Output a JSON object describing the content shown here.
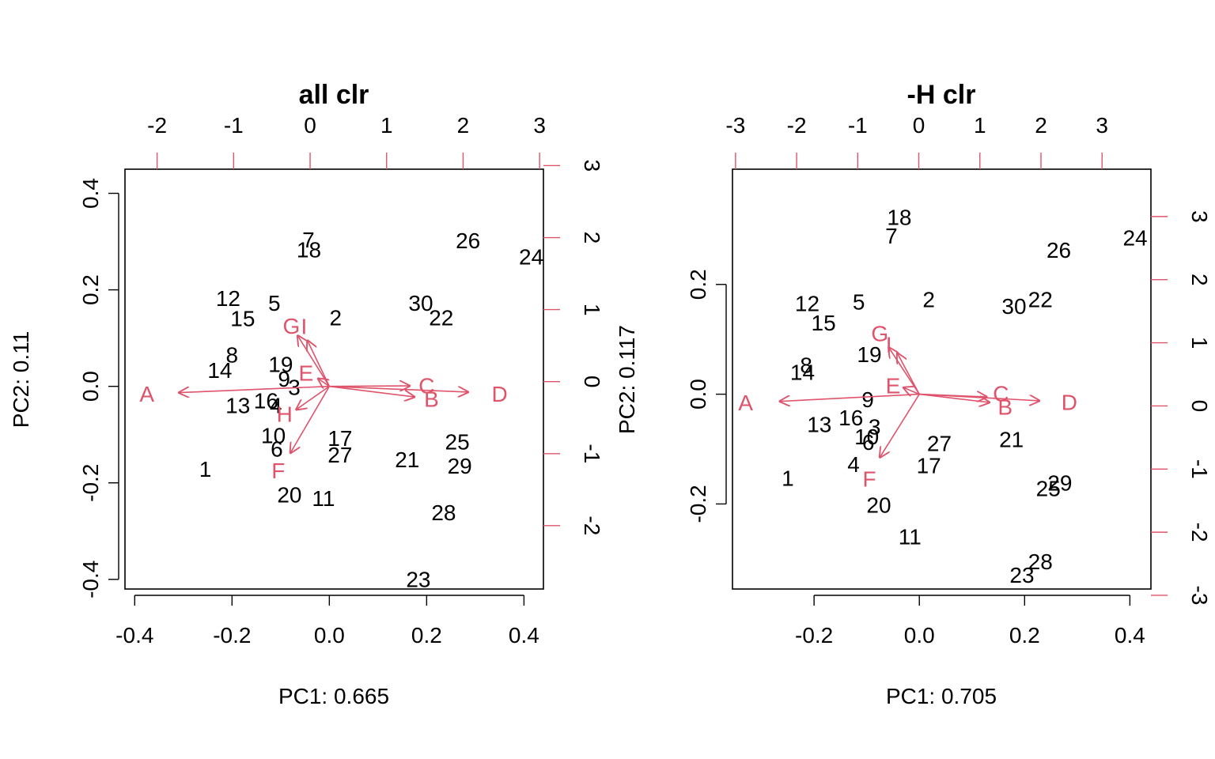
{
  "colors": {
    "text": "#000000",
    "variables": "#DF536B"
  },
  "chart_data": [
    {
      "type": "scatter",
      "subtype": "biplot",
      "title": "all clr",
      "xlabel": "PC1: 0.665",
      "ylabel": "PC2: 0.11",
      "xlim": [
        -0.42,
        0.44
      ],
      "ylim": [
        -0.42,
        0.45
      ],
      "x_ticks": [
        "-0.4",
        "-0.2",
        "0.0",
        "0.2",
        "0.4"
      ],
      "y_ticks": [
        "-0.4",
        "-0.2",
        "0.0",
        "0.2",
        "0.4"
      ],
      "top_lim": [
        -2.42,
        3.05
      ],
      "top_ticks": [
        "-2",
        "-1",
        "0",
        "1",
        "2",
        "3"
      ],
      "right_lim": [
        -2.88,
        2.95
      ],
      "right_ticks": [
        "-2",
        "-1",
        "0",
        "1",
        "2",
        "3"
      ],
      "points": [
        {
          "label": "1",
          "x": -0.255,
          "y": -0.172
        },
        {
          "label": "2",
          "x": 0.013,
          "y": 0.142
        },
        {
          "label": "3",
          "x": -0.072,
          "y": -0.002
        },
        {
          "label": "4",
          "x": -0.11,
          "y": -0.04
        },
        {
          "label": "5",
          "x": -0.113,
          "y": 0.172
        },
        {
          "label": "6",
          "x": -0.108,
          "y": -0.13
        },
        {
          "label": "7",
          "x": -0.043,
          "y": 0.303
        },
        {
          "label": "8",
          "x": -0.2,
          "y": 0.065
        },
        {
          "label": "9",
          "x": -0.093,
          "y": 0.015
        },
        {
          "label": "10",
          "x": -0.115,
          "y": -0.102
        },
        {
          "label": "11",
          "x": -0.012,
          "y": -0.232
        },
        {
          "label": "12",
          "x": -0.208,
          "y": 0.182
        },
        {
          "label": "13",
          "x": -0.188,
          "y": -0.04
        },
        {
          "label": "14",
          "x": -0.225,
          "y": 0.033
        },
        {
          "label": "15",
          "x": -0.178,
          "y": 0.14
        },
        {
          "label": "16",
          "x": -0.13,
          "y": -0.03
        },
        {
          "label": "17",
          "x": 0.022,
          "y": -0.108
        },
        {
          "label": "18",
          "x": -0.042,
          "y": 0.283
        },
        {
          "label": "19",
          "x": -0.1,
          "y": 0.045
        },
        {
          "label": "20",
          "x": -0.082,
          "y": -0.225
        },
        {
          "label": "21",
          "x": 0.16,
          "y": -0.152
        },
        {
          "label": "22",
          "x": 0.23,
          "y": 0.142
        },
        {
          "label": "23",
          "x": 0.183,
          "y": -0.4
        },
        {
          "label": "24",
          "x": 0.415,
          "y": 0.268
        },
        {
          "label": "25",
          "x": 0.263,
          "y": -0.115
        },
        {
          "label": "26",
          "x": 0.285,
          "y": 0.302
        },
        {
          "label": "27",
          "x": 0.022,
          "y": -0.142
        },
        {
          "label": "28",
          "x": 0.235,
          "y": -0.262
        },
        {
          "label": "29",
          "x": 0.268,
          "y": -0.165
        },
        {
          "label": "30",
          "x": 0.188,
          "y": 0.172
        }
      ],
      "arrows": [
        {
          "label": "A",
          "x": -0.309,
          "y": -0.013,
          "lx": -0.375,
          "ly": -0.016
        },
        {
          "label": "B",
          "x": 0.175,
          "y": -0.022,
          "lx": 0.21,
          "ly": -0.027
        },
        {
          "label": "C",
          "x": 0.165,
          "y": 0.001,
          "lx": 0.2,
          "ly": 0.001
        },
        {
          "label": "D",
          "x": 0.285,
          "y": -0.012,
          "lx": 0.35,
          "ly": -0.016
        },
        {
          "label": "E",
          "x": -0.023,
          "y": 0.016,
          "lx": -0.048,
          "ly": 0.027
        },
        {
          "label": "F",
          "x": -0.08,
          "y": -0.138,
          "lx": -0.105,
          "ly": -0.175
        },
        {
          "label": "G",
          "x": -0.065,
          "y": 0.105,
          "lx": -0.078,
          "ly": 0.125
        },
        {
          "label": "H",
          "x": -0.068,
          "y": -0.048,
          "lx": -0.092,
          "ly": -0.058
        },
        {
          "label": "I",
          "x": -0.045,
          "y": 0.095,
          "lx": -0.052,
          "ly": 0.124
        }
      ]
    },
    {
      "type": "scatter",
      "subtype": "biplot",
      "title": "-H clr",
      "xlabel": "PC1: 0.705",
      "ylabel": "PC2: 0.117",
      "xlim": [
        -0.355,
        0.44
      ],
      "ylim": [
        -0.355,
        0.41
      ],
      "x_ticks": [
        "-0.2",
        "0.0",
        "0.2",
        "0.4"
      ],
      "y_ticks": [
        "-0.2",
        "0.0",
        "0.2"
      ],
      "top_lim": [
        -3.05,
        3.8
      ],
      "top_ticks": [
        "-3",
        "-2",
        "-1",
        "0",
        "1",
        "2",
        "3"
      ],
      "right_lim": [
        -2.9,
        3.75
      ],
      "right_ticks": [
        "-3",
        "-2",
        "-1",
        "0",
        "1",
        "2",
        "3"
      ],
      "points": [
        {
          "label": "1",
          "x": -0.25,
          "y": -0.153
        },
        {
          "label": "2",
          "x": 0.018,
          "y": 0.172
        },
        {
          "label": "3",
          "x": -0.085,
          "y": -0.06
        },
        {
          "label": "4",
          "x": -0.125,
          "y": -0.128
        },
        {
          "label": "5",
          "x": -0.115,
          "y": 0.168
        },
        {
          "label": "6",
          "x": -0.097,
          "y": -0.088
        },
        {
          "label": "7",
          "x": -0.053,
          "y": 0.288
        },
        {
          "label": "8",
          "x": -0.215,
          "y": 0.053
        },
        {
          "label": "9",
          "x": -0.098,
          "y": -0.01
        },
        {
          "label": "10",
          "x": -0.1,
          "y": -0.078
        },
        {
          "label": "11",
          "x": -0.018,
          "y": -0.26
        },
        {
          "label": "12",
          "x": -0.213,
          "y": 0.165
        },
        {
          "label": "13",
          "x": -0.19,
          "y": -0.055
        },
        {
          "label": "14",
          "x": -0.222,
          "y": 0.04
        },
        {
          "label": "15",
          "x": -0.182,
          "y": 0.13
        },
        {
          "label": "16",
          "x": -0.13,
          "y": -0.043
        },
        {
          "label": "17",
          "x": 0.018,
          "y": -0.13
        },
        {
          "label": "18",
          "x": -0.038,
          "y": 0.322
        },
        {
          "label": "19",
          "x": -0.095,
          "y": 0.072
        },
        {
          "label": "20",
          "x": -0.077,
          "y": -0.202
        },
        {
          "label": "21",
          "x": 0.175,
          "y": -0.083
        },
        {
          "label": "22",
          "x": 0.23,
          "y": 0.172
        },
        {
          "label": "23",
          "x": 0.195,
          "y": -0.33
        },
        {
          "label": "24",
          "x": 0.41,
          "y": 0.285
        },
        {
          "label": "25",
          "x": 0.245,
          "y": -0.172
        },
        {
          "label": "26",
          "x": 0.265,
          "y": 0.262
        },
        {
          "label": "27",
          "x": 0.038,
          "y": -0.09
        },
        {
          "label": "28",
          "x": 0.23,
          "y": -0.305
        },
        {
          "label": "29",
          "x": 0.267,
          "y": -0.162
        },
        {
          "label": "30",
          "x": 0.18,
          "y": 0.16
        }
      ],
      "arrows": [
        {
          "label": "A",
          "x": -0.265,
          "y": -0.013,
          "lx": -0.33,
          "ly": -0.016
        },
        {
          "label": "B",
          "x": 0.133,
          "y": -0.015,
          "lx": 0.163,
          "ly": -0.024
        },
        {
          "label": "C",
          "x": 0.128,
          "y": -0.005,
          "lx": 0.155,
          "ly": 0.001
        },
        {
          "label": "D",
          "x": 0.228,
          "y": -0.012,
          "lx": 0.285,
          "ly": -0.015
        },
        {
          "label": "E",
          "x": -0.03,
          "y": 0.012,
          "lx": -0.05,
          "ly": 0.015
        },
        {
          "label": "F",
          "x": -0.075,
          "y": -0.115,
          "lx": -0.095,
          "ly": -0.155
        },
        {
          "label": "G",
          "x": -0.058,
          "y": 0.085,
          "lx": -0.075,
          "ly": 0.11
        },
        {
          "label": "I",
          "x": -0.042,
          "y": 0.075,
          "lx": -0.058,
          "ly": 0.09
        }
      ]
    }
  ]
}
